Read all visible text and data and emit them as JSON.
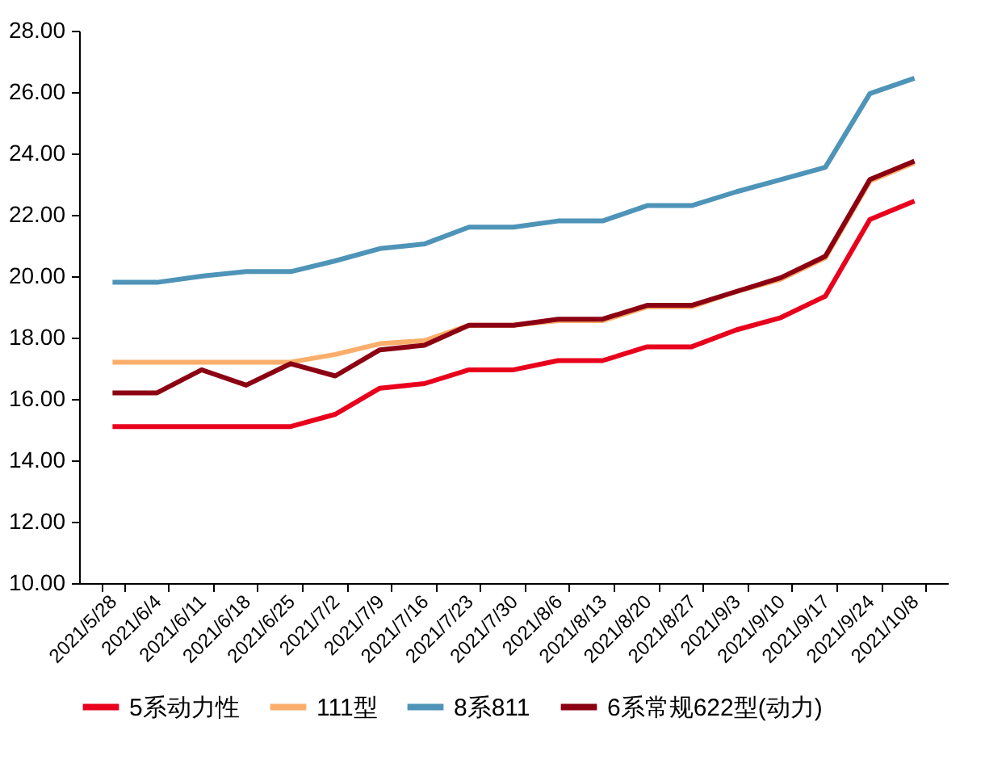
{
  "chart_data": {
    "type": "line",
    "categories": [
      "2021/5/28",
      "2021/6/4",
      "2021/6/11",
      "2021/6/18",
      "2021/6/25",
      "2021/7/2",
      "2021/7/9",
      "2021/7/16",
      "2021/7/23",
      "2021/7/30",
      "2021/8/6",
      "2021/8/13",
      "2021/8/20",
      "2021/8/27",
      "2021/9/3",
      "2021/9/10",
      "2021/9/17",
      "2021/9/24",
      "2021/10/8"
    ],
    "series": [
      {
        "name": "5系动力性",
        "color": "#e8001c",
        "values": [
          15.1,
          15.1,
          15.1,
          15.1,
          15.1,
          15.5,
          16.35,
          16.5,
          16.95,
          16.95,
          17.25,
          17.25,
          17.7,
          17.7,
          18.25,
          18.65,
          19.35,
          21.85,
          22.45
        ]
      },
      {
        "name": "111型",
        "color": "#fbae6b",
        "values": [
          17.2,
          17.2,
          17.2,
          17.2,
          17.2,
          17.45,
          17.8,
          17.9,
          18.4,
          18.4,
          18.55,
          18.55,
          19.0,
          19.0,
          19.5,
          19.9,
          20.6,
          23.1,
          23.7
        ]
      },
      {
        "name": "8系811",
        "color": "#4e94b8",
        "values": [
          19.8,
          19.8,
          20.0,
          20.15,
          20.15,
          20.5,
          20.9,
          21.05,
          21.6,
          21.6,
          21.8,
          21.8,
          22.3,
          22.3,
          22.75,
          23.15,
          23.55,
          25.95,
          26.45
        ]
      },
      {
        "name": "6系常规622型(动力)",
        "color": "#8b0012",
        "values": [
          16.2,
          16.2,
          16.95,
          16.45,
          17.15,
          16.75,
          17.6,
          17.75,
          18.4,
          18.4,
          18.6,
          18.6,
          19.05,
          19.05,
          19.5,
          19.95,
          20.65,
          23.15,
          23.75
        ]
      }
    ],
    "ylim": [
      10,
      28
    ],
    "yticks": [
      {
        "value": 10,
        "label": "10.00"
      },
      {
        "value": 12,
        "label": "12.00"
      },
      {
        "value": 14,
        "label": "14.00"
      },
      {
        "value": 16,
        "label": "16.00"
      },
      {
        "value": 18,
        "label": "18.00"
      },
      {
        "value": 20,
        "label": "20.00"
      },
      {
        "value": 22,
        "label": "22.00"
      },
      {
        "value": 24,
        "label": "24.00"
      },
      {
        "value": 26,
        "label": "26.00"
      },
      {
        "value": 28,
        "label": "28.00"
      }
    ],
    "grid": false,
    "legend": "bottom",
    "marker": "none",
    "line_style": "solid"
  }
}
